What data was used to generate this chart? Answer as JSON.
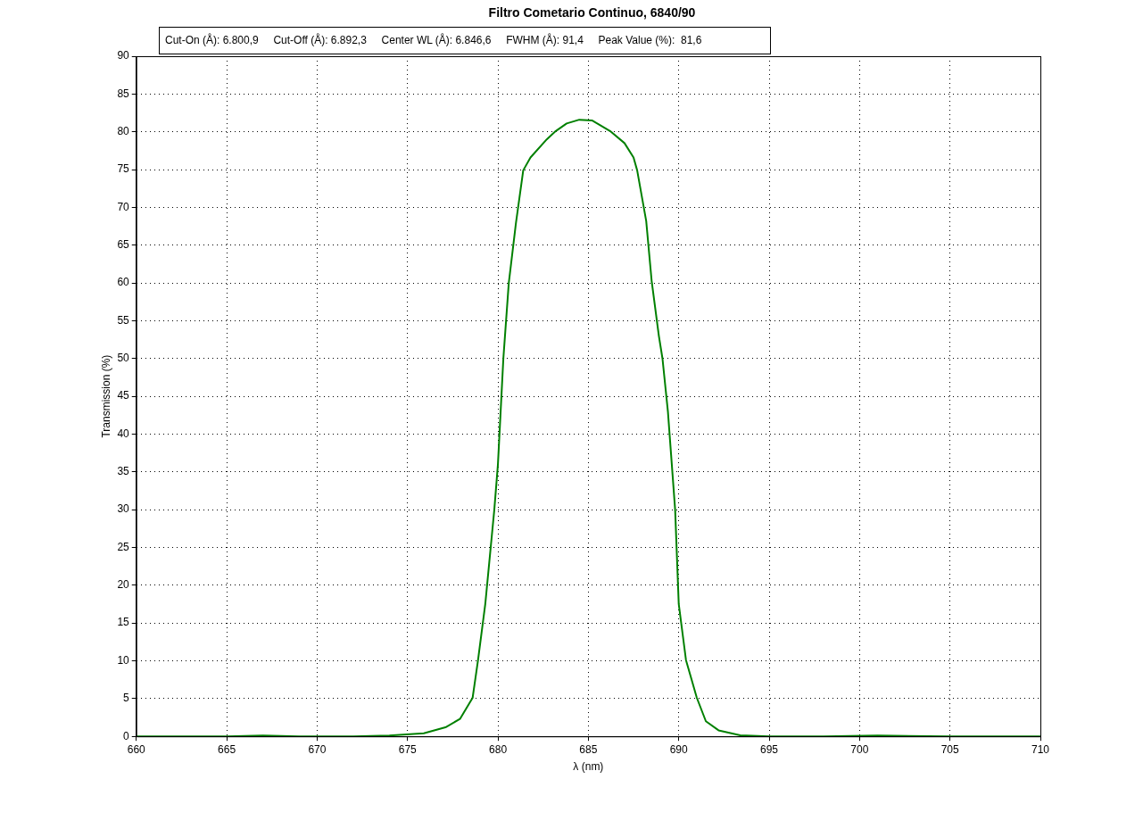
{
  "chart_data": {
    "type": "line",
    "title": "Filtro Cometario Continuo, 6840/90",
    "xlabel": "λ (nm)",
    "ylabel": "Transmission (%)",
    "annotations": [
      "Cut-On (Å): 6.800,9     Cut-Off (Å): 6.892,3     Center WL (Å): 6.846,6     FWHM (Å): 91,4     Peak Value (%):  81,6"
    ],
    "x": [
      660,
      665,
      667,
      669,
      672,
      674,
      675.9,
      677.1,
      677.9,
      678.6,
      678.9,
      679.3,
      679.8,
      680.0,
      680.3,
      680.6,
      681.0,
      681.4,
      681.8,
      682.7,
      683.2,
      683.8,
      684.5,
      685.2,
      686.2,
      687.0,
      687.5,
      687.7,
      688.2,
      688.5,
      688.9,
      689.1,
      689.4,
      689.8,
      690.0,
      690.4,
      691.0,
      691.5,
      692.2,
      693.4,
      695,
      698,
      701,
      705,
      710
    ],
    "series": [
      {
        "color": "#008000",
        "values": [
          0,
          0,
          0.1,
          0,
          0,
          0.1,
          0.4,
          1.2,
          2.3,
          5.1,
          10.1,
          17.5,
          30,
          36,
          50,
          60,
          68,
          74.9,
          76.6,
          79,
          80.1,
          81.1,
          81.6,
          81.5,
          80.1,
          78.5,
          76.6,
          74.9,
          68.2,
          60.3,
          53,
          50,
          43,
          30,
          17.5,
          10.1,
          5.1,
          2,
          0.8,
          0.15,
          0,
          0,
          0.1,
          0,
          0
        ]
      }
    ],
    "xlim": [
      660,
      710
    ],
    "xticks": [
      660,
      665,
      670,
      675,
      680,
      685,
      690,
      695,
      700,
      705,
      710
    ],
    "ylim": [
      0,
      90
    ],
    "yticks": [
      0,
      5,
      10,
      15,
      20,
      25,
      30,
      35,
      40,
      45,
      50,
      55,
      60,
      65,
      70,
      75,
      80,
      85,
      90
    ],
    "grid": true,
    "legend": false,
    "marker": "none",
    "line_style": "solid"
  }
}
